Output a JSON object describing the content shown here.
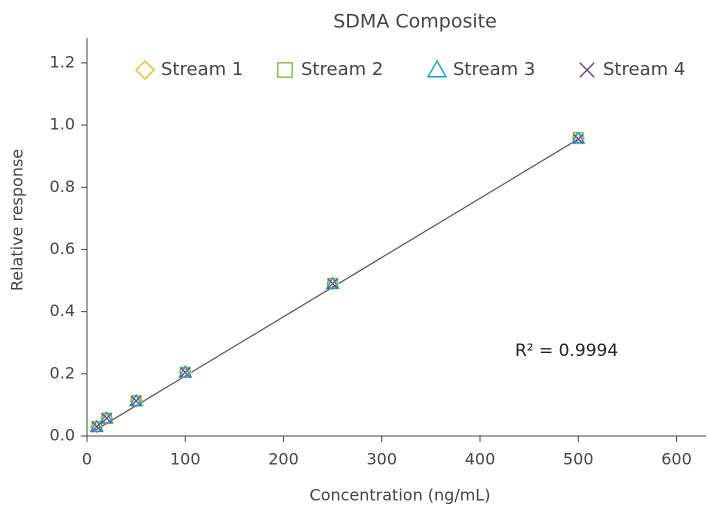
{
  "chart_data": {
    "type": "scatter",
    "title": "SDMA Composite",
    "x_label": "Concentration (ng/mL)",
    "y_label": "Relative response",
    "x": [
      10,
      20,
      50,
      100,
      250,
      500
    ],
    "series": [
      {
        "name": "Stream 1",
        "marker": "diamond",
        "color": "#e6be1e",
        "values": [
          0.03,
          0.057,
          0.113,
          0.206,
          0.49,
          0.958
        ]
      },
      {
        "name": "Stream 2",
        "marker": "square",
        "color": "#78bf45",
        "values": [
          0.031,
          0.058,
          0.114,
          0.205,
          0.491,
          0.96
        ]
      },
      {
        "name": "Stream 3",
        "marker": "triangle",
        "color": "#1a9ad6",
        "values": [
          0.029,
          0.056,
          0.112,
          0.204,
          0.489,
          0.957
        ]
      },
      {
        "name": "Stream 4",
        "marker": "cross",
        "color": "#6b3fa0",
        "values": [
          0.03,
          0.057,
          0.113,
          0.205,
          0.49,
          0.955
        ]
      }
    ],
    "trendline": {
      "x": [
        5,
        500
      ],
      "values": [
        0.012,
        0.955
      ],
      "color": "#555555"
    },
    "annotation": "R² = 0.9994",
    "xlim": [
      0,
      630
    ],
    "xticks": [
      0,
      100,
      200,
      300,
      400,
      500,
      600
    ],
    "ylim": [
      0,
      1.28
    ],
    "yticks": [
      {
        "value": 0,
        "label": "0.0"
      },
      0.2,
      0.4,
      0.6,
      0.8,
      {
        "value": 1,
        "label": "1.0"
      },
      1.2
    ],
    "legend": "top"
  }
}
